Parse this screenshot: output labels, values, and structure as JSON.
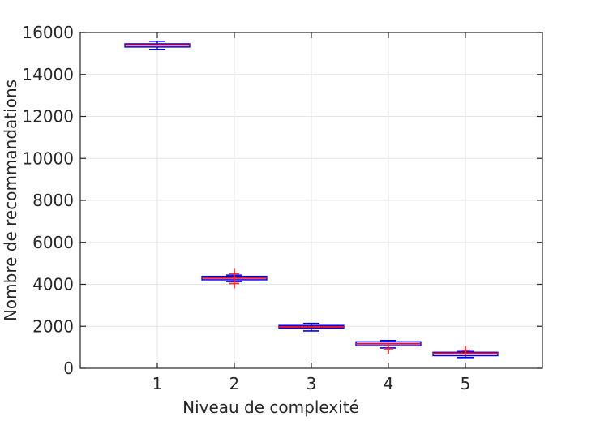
{
  "figure": {
    "background": "#ffffff"
  },
  "chart_data": {
    "type": "boxplot",
    "title": "",
    "xlabel": "Niveau de complexité",
    "ylabel": "Nombre de recommandations",
    "xlim": [
      0,
      6
    ],
    "ylim": [
      0,
      16000
    ],
    "xticks": [
      1,
      2,
      3,
      4,
      5
    ],
    "xtick_labels": [
      "1",
      "2",
      "3",
      "4",
      "5"
    ],
    "yticks": [
      0,
      2000,
      4000,
      6000,
      8000,
      10000,
      12000,
      14000,
      16000
    ],
    "ytick_labels": [
      "0",
      "2000",
      "4000",
      "6000",
      "8000",
      "10000",
      "12000",
      "14000",
      "16000"
    ],
    "grid": true,
    "legend": null,
    "box_width_units": 0.84,
    "cap_width_units": 0.21,
    "colors": {
      "box": "#0000ee",
      "median": "#e8112d",
      "whisker": "#0000ee",
      "cap": "#0000ee",
      "outlier": "#ff2a2a",
      "grid": "#e6e6e6",
      "axis": "#262626",
      "text": "#262626",
      "background": "#ffffff"
    },
    "boxes": [
      {
        "x": 1,
        "whisker_low": 15180,
        "q1": 15310,
        "median": 15400,
        "q3": 15460,
        "whisker_high": 15580,
        "outliers": []
      },
      {
        "x": 2,
        "whisker_low": 4130,
        "q1": 4215,
        "median": 4300,
        "q3": 4380,
        "whisker_high": 4440,
        "outliers": [
          4510,
          4040
        ]
      },
      {
        "x": 3,
        "whisker_low": 1780,
        "q1": 1910,
        "median": 1970,
        "q3": 2040,
        "whisker_high": 2140,
        "outliers": []
      },
      {
        "x": 4,
        "whisker_low": 970,
        "q1": 1080,
        "median": 1170,
        "q3": 1260,
        "whisker_high": 1320,
        "outliers": [
          930
        ]
      },
      {
        "x": 5,
        "whisker_low": 510,
        "q1": 600,
        "median": 710,
        "q3": 760,
        "whisker_high": 800,
        "outliers": [
          850
        ]
      }
    ]
  }
}
